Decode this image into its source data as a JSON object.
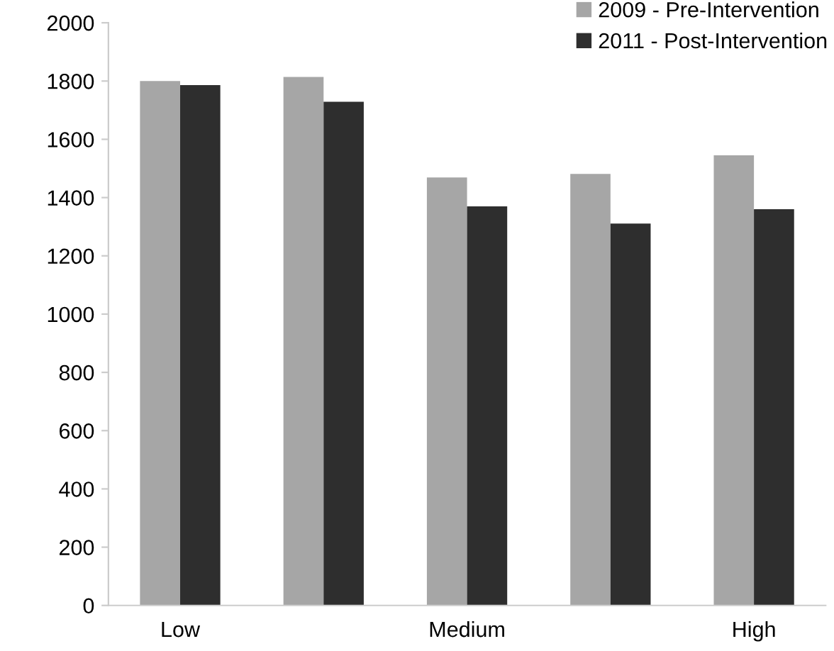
{
  "chart_data": {
    "type": "bar",
    "categories": [
      "Low",
      null,
      "Medium",
      null,
      "High"
    ],
    "series": [
      {
        "name": "2009 - Pre-Intervention",
        "color": "#a6a6a6",
        "values": [
          1800,
          1814,
          1469,
          1481,
          1545
        ]
      },
      {
        "name": "2011 - Post-Intervention",
        "color": "#2e2e2e",
        "values": [
          1786,
          1729,
          1370,
          1311,
          1360
        ]
      }
    ],
    "ylim": [
      0,
      2000
    ],
    "yticks": [
      0,
      200,
      400,
      600,
      800,
      1000,
      1200,
      1400,
      1600,
      1800,
      2000
    ],
    "grid": false,
    "legend": "top right"
  }
}
